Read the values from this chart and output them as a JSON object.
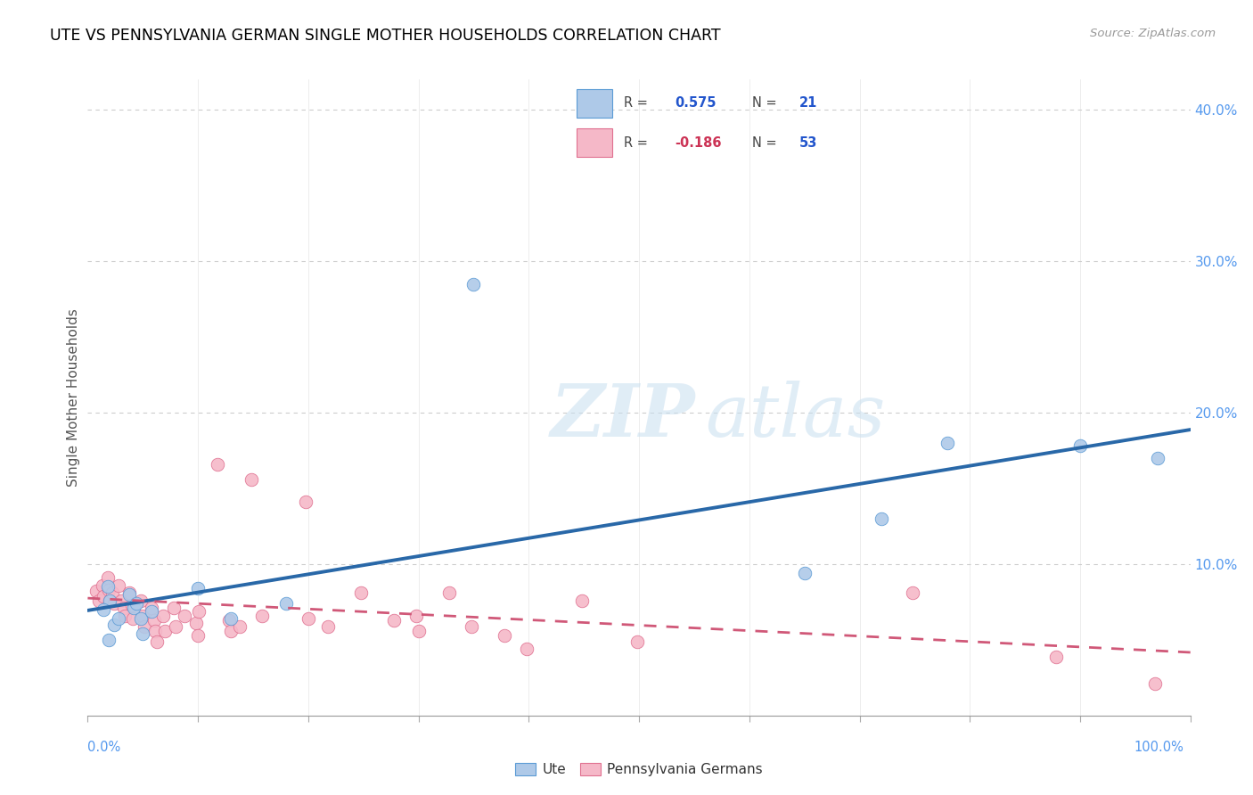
{
  "title": "UTE VS PENNSYLVANIA GERMAN SINGLE MOTHER HOUSEHOLDS CORRELATION CHART",
  "source": "Source: ZipAtlas.com",
  "ylabel": "Single Mother Households",
  "xlim": [
    0.0,
    1.0
  ],
  "ylim": [
    0.0,
    0.42
  ],
  "yticks": [
    0.0,
    0.1,
    0.2,
    0.3,
    0.4
  ],
  "yticklabels_right": [
    "",
    "10.0%",
    "20.0%",
    "30.0%",
    "40.0%"
  ],
  "legend_labels": [
    "Ute",
    "Pennsylvania Germans"
  ],
  "ute_color": "#aec9e8",
  "penn_color": "#f5b8c8",
  "ute_edge_color": "#5b9bd5",
  "penn_edge_color": "#e07090",
  "ute_line_color": "#2968a8",
  "penn_line_color": "#d05878",
  "R_ute": "0.575",
  "N_ute": "21",
  "R_penn": "-0.186",
  "N_penn": "53",
  "watermark_zip": "ZIP",
  "watermark_atlas": "atlas",
  "ute_points": [
    [
      0.018,
      0.085
    ],
    [
      0.02,
      0.076
    ],
    [
      0.014,
      0.07
    ],
    [
      0.024,
      0.06
    ],
    [
      0.028,
      0.064
    ],
    [
      0.019,
      0.05
    ],
    [
      0.038,
      0.08
    ],
    [
      0.042,
      0.071
    ],
    [
      0.044,
      0.074
    ],
    [
      0.048,
      0.064
    ],
    [
      0.05,
      0.054
    ],
    [
      0.058,
      0.069
    ],
    [
      0.1,
      0.084
    ],
    [
      0.13,
      0.064
    ],
    [
      0.18,
      0.074
    ],
    [
      0.35,
      0.285
    ],
    [
      0.65,
      0.094
    ],
    [
      0.72,
      0.13
    ],
    [
      0.78,
      0.18
    ],
    [
      0.9,
      0.178
    ],
    [
      0.97,
      0.17
    ]
  ],
  "penn_points": [
    [
      0.008,
      0.082
    ],
    [
      0.01,
      0.076
    ],
    [
      0.013,
      0.086
    ],
    [
      0.014,
      0.079
    ],
    [
      0.018,
      0.091
    ],
    [
      0.019,
      0.083
    ],
    [
      0.02,
      0.076
    ],
    [
      0.022,
      0.081
    ],
    [
      0.024,
      0.074
    ],
    [
      0.028,
      0.086
    ],
    [
      0.03,
      0.076
    ],
    [
      0.033,
      0.071
    ],
    [
      0.034,
      0.066
    ],
    [
      0.038,
      0.081
    ],
    [
      0.04,
      0.073
    ],
    [
      0.041,
      0.064
    ],
    [
      0.048,
      0.076
    ],
    [
      0.05,
      0.066
    ],
    [
      0.051,
      0.059
    ],
    [
      0.058,
      0.071
    ],
    [
      0.06,
      0.063
    ],
    [
      0.061,
      0.056
    ],
    [
      0.063,
      0.049
    ],
    [
      0.068,
      0.066
    ],
    [
      0.07,
      0.056
    ],
    [
      0.078,
      0.071
    ],
    [
      0.08,
      0.059
    ],
    [
      0.088,
      0.066
    ],
    [
      0.098,
      0.061
    ],
    [
      0.1,
      0.053
    ],
    [
      0.101,
      0.069
    ],
    [
      0.118,
      0.166
    ],
    [
      0.128,
      0.063
    ],
    [
      0.13,
      0.056
    ],
    [
      0.138,
      0.059
    ],
    [
      0.148,
      0.156
    ],
    [
      0.158,
      0.066
    ],
    [
      0.198,
      0.141
    ],
    [
      0.2,
      0.064
    ],
    [
      0.218,
      0.059
    ],
    [
      0.248,
      0.081
    ],
    [
      0.278,
      0.063
    ],
    [
      0.298,
      0.066
    ],
    [
      0.3,
      0.056
    ],
    [
      0.328,
      0.081
    ],
    [
      0.348,
      0.059
    ],
    [
      0.378,
      0.053
    ],
    [
      0.398,
      0.044
    ],
    [
      0.448,
      0.076
    ],
    [
      0.498,
      0.049
    ],
    [
      0.748,
      0.081
    ],
    [
      0.878,
      0.039
    ],
    [
      0.968,
      0.021
    ]
  ]
}
